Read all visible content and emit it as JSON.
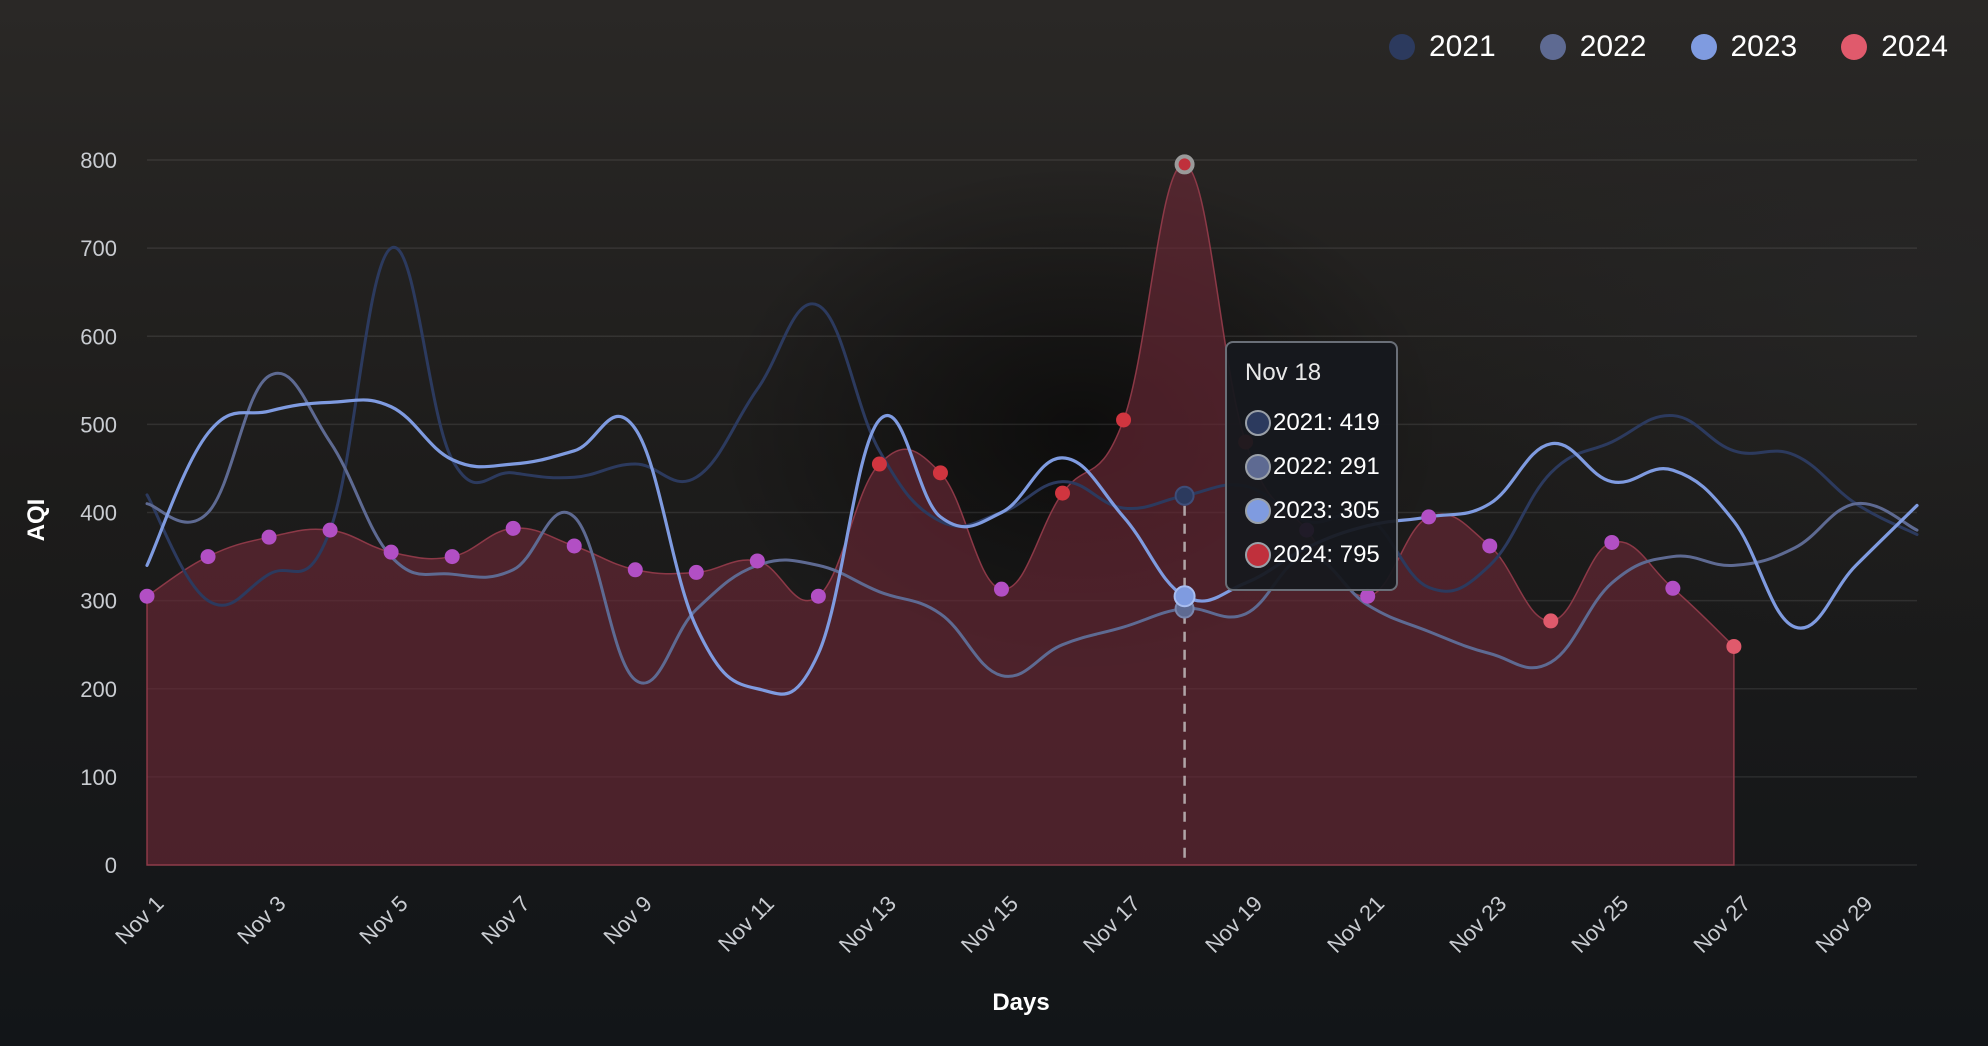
{
  "legend": {
    "items": [
      {
        "label": "2021",
        "color": "#2c3a5e"
      },
      {
        "label": "2022",
        "color": "#5e6a92"
      },
      {
        "label": "2023",
        "color": "#7f9be0"
      },
      {
        "label": "2024",
        "color": "#e05a6c"
      }
    ]
  },
  "tooltip": {
    "title": "Nov 18",
    "rows": [
      {
        "text": "2021: 419",
        "color": "#2c3a5e"
      },
      {
        "text": "2022: 291",
        "color": "#5e6a92"
      },
      {
        "text": "2023: 305",
        "color": "#7f9be0"
      },
      {
        "text": "2024: 795",
        "color": "#c0303c"
      }
    ]
  },
  "chart_data": {
    "type": "line",
    "xlabel": "Days",
    "ylabel": "AQI",
    "ylim": [
      0,
      800
    ],
    "yticks": [
      0,
      100,
      200,
      300,
      400,
      500,
      600,
      700,
      800
    ],
    "grid": true,
    "legend_position": "top-right",
    "categories": [
      "Nov 1",
      "Nov 2",
      "Nov 3",
      "Nov 4",
      "Nov 5",
      "Nov 6",
      "Nov 7",
      "Nov 8",
      "Nov 9",
      "Nov 10",
      "Nov 11",
      "Nov 12",
      "Nov 13",
      "Nov 14",
      "Nov 15",
      "Nov 16",
      "Nov 17",
      "Nov 18",
      "Nov 19",
      "Nov 20",
      "Nov 21",
      "Nov 22",
      "Nov 23",
      "Nov 24",
      "Nov 25",
      "Nov 26",
      "Nov 27",
      "Nov 28",
      "Nov 29",
      "Nov 30"
    ],
    "tick_labels": [
      "Nov 1",
      "Nov 3",
      "Nov 5",
      "Nov 7",
      "Nov 9",
      "Nov 11",
      "Nov 13",
      "Nov 15",
      "Nov 17",
      "Nov 19",
      "Nov 21",
      "Nov 23",
      "Nov 25",
      "Nov 27",
      "Nov 29"
    ],
    "series": [
      {
        "name": "2021",
        "color": "#2c3a5e",
        "values": [
          420,
          300,
          330,
          380,
          700,
          460,
          445,
          440,
          455,
          440,
          540,
          635,
          470,
          390,
          400,
          435,
          405,
          419,
          430,
          390,
          395,
          315,
          340,
          445,
          480,
          510,
          470,
          465,
          410,
          375
        ]
      },
      {
        "name": "2022",
        "color": "#5e6a92",
        "values": [
          410,
          400,
          555,
          480,
          350,
          330,
          335,
          395,
          210,
          290,
          340,
          340,
          310,
          285,
          215,
          250,
          270,
          291,
          285,
          350,
          295,
          265,
          240,
          230,
          320,
          350,
          340,
          360,
          410,
          380
        ]
      },
      {
        "name": "2023",
        "color": "#7f9be0",
        "values": [
          340,
          490,
          515,
          525,
          520,
          460,
          455,
          470,
          495,
          270,
          200,
          240,
          505,
          395,
          400,
          462,
          395,
          305,
          320,
          360,
          385,
          395,
          410,
          478,
          435,
          448,
          390,
          270,
          340,
          408
        ]
      },
      {
        "name": "2024",
        "color": "#e05a6c",
        "values": [
          305,
          350,
          372,
          380,
          355,
          350,
          382,
          362,
          335,
          332,
          345,
          305,
          455,
          445,
          313,
          422,
          505,
          795,
          480,
          380,
          305,
          395,
          362,
          277,
          366,
          314,
          248,
          null,
          null,
          null
        ]
      }
    ]
  }
}
